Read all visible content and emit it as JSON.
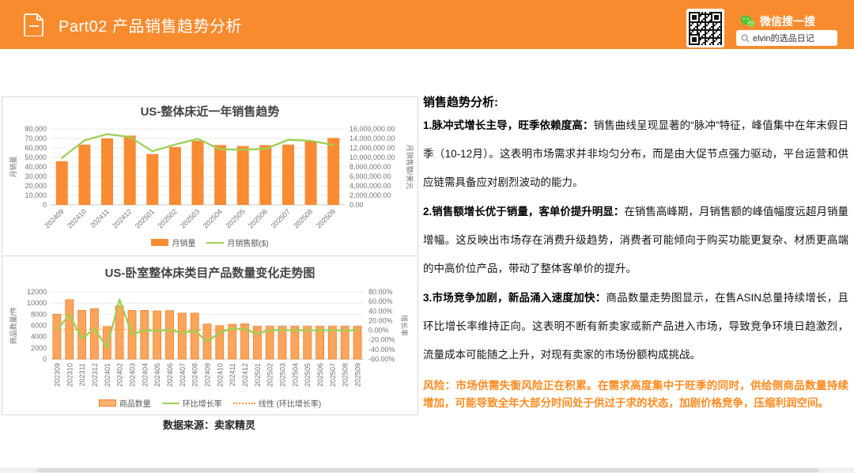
{
  "header": {
    "title": "Part02 产品销售趋势分析",
    "wechat_label": "微信搜一搜",
    "search_value": "elvin的选品日记"
  },
  "analysis": {
    "heading": "销售趋势分析:",
    "paragraphs": [
      {
        "lead": "1.脉冲式增长主导，旺季依赖度高：",
        "text": "销售曲线呈现显著的“脉冲”特征，峰值集中在年末假日季（10-12月）。这表明市场需求并非均匀分布，而是由大促节点强力驱动，平台运营和供应链需具备应对剧烈波动的能力。"
      },
      {
        "lead": "2.销售额增长优于销量，客单价提升明显：",
        "text": "在销售高峰期，月销售额的峰值幅度远超月销量增幅。这反映出市场存在消费升级趋势，消费者可能倾向于购买功能更复杂、材质更高端的中高价位产品，带动了整体客单价的提升。"
      },
      {
        "lead": "3.市场竞争加剧，新品涌入速度加快：",
        "text": "商品数量走势图显示，在售ASIN总量持续增长，且环比增长率维持正向。这表明不断有新卖家或新产品进入市场，导致竞争环境日趋激烈，流量成本可能随之上升，对现有卖家的市场份额构成挑战。"
      }
    ],
    "risk": "风险：市场供需失衡风险正在积累。在需求高度集中于旺季的同时，供给侧商品数量持续增加，可能导致全年大部分时间处于供过于求的状态，加剧价格竞争，压缩利润空间。"
  },
  "source_note": "数据来源：卖家精灵",
  "colors": {
    "header_bg": "#F98B2F",
    "bar_orange": "#F98B33",
    "bar2_fill": "#FBA45B",
    "bar2_stroke": "#F0802A",
    "line_green": "#9CD152",
    "trend_orange": "#F89A3C",
    "risk_text": "#FF8A1E",
    "wechat_green": "#51C332",
    "grid": "#EBEBEB",
    "axis_line": "#C9C9C9",
    "axis_text": "#737373"
  },
  "chart_data": [
    {
      "type": "bar",
      "subtype": "bar+line combo",
      "title": "US-整体床近一年销售趋势",
      "categories": [
        "202409",
        "202410",
        "202411",
        "202412",
        "202501",
        "202502",
        "202503",
        "202504",
        "202505",
        "202506",
        "202507",
        "202508",
        "202509"
      ],
      "series": [
        {
          "name": "月销量",
          "type": "bar",
          "axis": "left",
          "values": [
            46000,
            63500,
            70000,
            73000,
            53500,
            61000,
            67500,
            63000,
            62000,
            63000,
            63500,
            67000,
            70500
          ]
        },
        {
          "name": "月销售额($)",
          "type": "line",
          "axis": "right",
          "values": [
            9900000,
            13600000,
            14900000,
            14300000,
            11300000,
            12700000,
            13900000,
            11700000,
            11600000,
            11800000,
            13700000,
            13500000,
            12600000
          ]
        }
      ],
      "left_axis": {
        "label": "月销量",
        "min": 0,
        "max": 80000,
        "ticks": [
          "0",
          "10,000",
          "20,000",
          "30,000",
          "40,000",
          "50,000",
          "60,000",
          "70,000",
          "80,000"
        ]
      },
      "right_axis": {
        "label": "月销售额/美元",
        "min": 0,
        "max": 16000000,
        "ticks": [
          "0.00",
          "2,000,000.00",
          "4,000,000.00",
          "6,000,000.00",
          "8,000,000.00",
          "10,000,000.00",
          "12,000,000.00",
          "14,000,000.00",
          "16,000,000.00"
        ]
      },
      "legend": [
        "月销量",
        "月销售额($)"
      ],
      "grid": true,
      "legend_position": "bottom"
    },
    {
      "type": "bar",
      "subtype": "bar+line combo with linear trendline",
      "title": "US-卧室整体床类目产品数量变化走势图",
      "categories": [
        "202309",
        "202310",
        "202311",
        "202312",
        "202401",
        "202402",
        "202403",
        "202404",
        "202405",
        "202406",
        "202407",
        "202408",
        "202409",
        "202410",
        "202411",
        "202412",
        "202501",
        "202502",
        "202503",
        "202504",
        "202505",
        "202506",
        "202507",
        "202508",
        "202509"
      ],
      "series": [
        {
          "name": "商品数量",
          "type": "bar",
          "axis": "left",
          "values": [
            8000,
            10600,
            8700,
            9000,
            5800,
            9500,
            8700,
            8700,
            8600,
            8650,
            8200,
            8200,
            6250,
            5950,
            6200,
            6300,
            5850,
            5850,
            5850,
            5850,
            5850,
            5850,
            5850,
            5850,
            5850
          ]
        },
        {
          "name": "环比增长率",
          "type": "line",
          "axis": "right",
          "values": [
            1.0,
            32.5,
            -17.9,
            3.4,
            -35.6,
            63.8,
            -8.4,
            0.0,
            -1.1,
            0.6,
            -5.2,
            0.0,
            -23.8,
            -4.8,
            4.2,
            1.6,
            -7.1,
            0.0,
            0.5,
            0.0,
            0.0,
            0.0,
            0.0,
            -0.5,
            0.5
          ]
        },
        {
          "name": "线性 (环比增长率)",
          "type": "trend",
          "axis": "right",
          "values": [
            2.0,
            0.3
          ]
        }
      ],
      "left_axis": {
        "label": "商品数量/件",
        "min": 0,
        "max": 12000,
        "ticks": [
          "0",
          "2000",
          "4000",
          "6000",
          "8000",
          "10000",
          "12000"
        ]
      },
      "right_axis": {
        "label": "增长率",
        "min": -60,
        "max": 80,
        "ticks": [
          "-60.00%",
          "-40.00%",
          "-20.00%",
          "0.00%",
          "20.00%",
          "40.00%",
          "60.00%",
          "80.00%"
        ]
      },
      "legend": [
        "商品数量",
        "环比增长率",
        "线性 (环比增长率)"
      ],
      "grid": true,
      "legend_position": "bottom"
    }
  ]
}
